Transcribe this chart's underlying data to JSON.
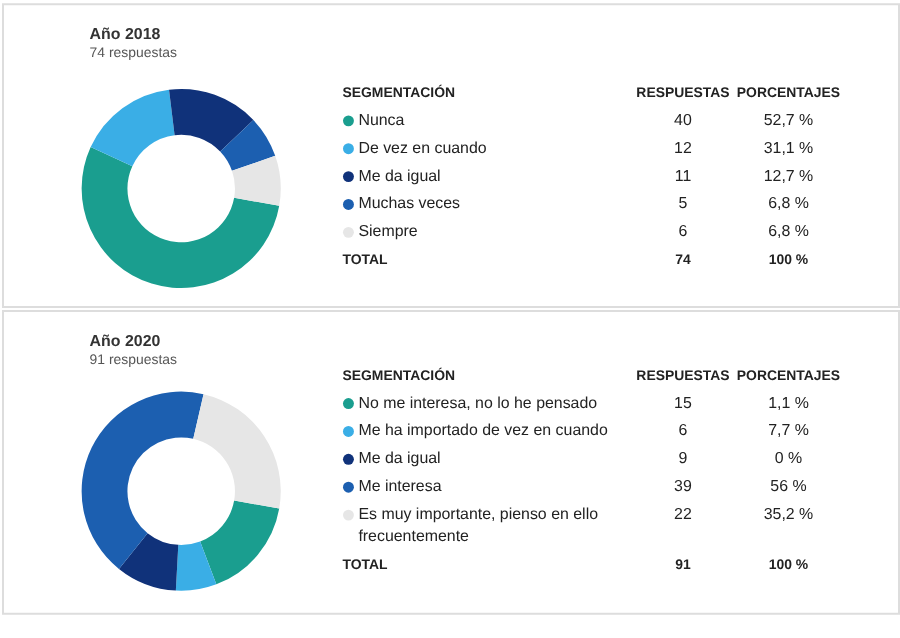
{
  "chart_data": [
    {
      "type": "donut",
      "title": "Año 2018",
      "subtitle": "74 respuestas",
      "categories": [
        "Nunca",
        "De vez en cuando",
        "Me da igual",
        "Muchas veces",
        "Siempre"
      ],
      "values": [
        40,
        12,
        11,
        5,
        6
      ],
      "colors": [
        "#1a9e8f",
        "#3aaee6",
        "#10327a",
        "#1c5fb0",
        "#e6e6e6"
      ],
      "data_labels": true,
      "legend": "right",
      "annotations": [
        "SEGMENTACIÓN",
        "RESPUESTAS",
        "PORCENTAJES",
        "52,7 %",
        "31,1 %",
        "12,7 %",
        "6,8 %",
        "6,8 %",
        "TOTAL",
        "74",
        "100 %"
      ]
    },
    {
      "type": "donut",
      "title": "Año 2020",
      "subtitle": "91 respuestas",
      "categories": [
        "No me interesa, no lo he pensado",
        "Me ha importado de vez en cuando",
        "Me da igual",
        "Me interesa",
        "Es muy importante, pienso en ello frecuentemente"
      ],
      "values": [
        15,
        6,
        9,
        39,
        22
      ],
      "colors": [
        "#1a9e8f",
        "#3aaee6",
        "#10327a",
        "#1c5fb0",
        "#e6e6e6"
      ],
      "data_labels": true,
      "legend": "right",
      "annotations": [
        "SEGMENTACIÓN",
        "RESPUESTAS",
        "PORCENTAJES",
        "1,1 %",
        "7,7 %",
        "0 %",
        "56 %",
        "35,2 %",
        "TOTAL",
        "91",
        "100 %"
      ]
    }
  ]
}
